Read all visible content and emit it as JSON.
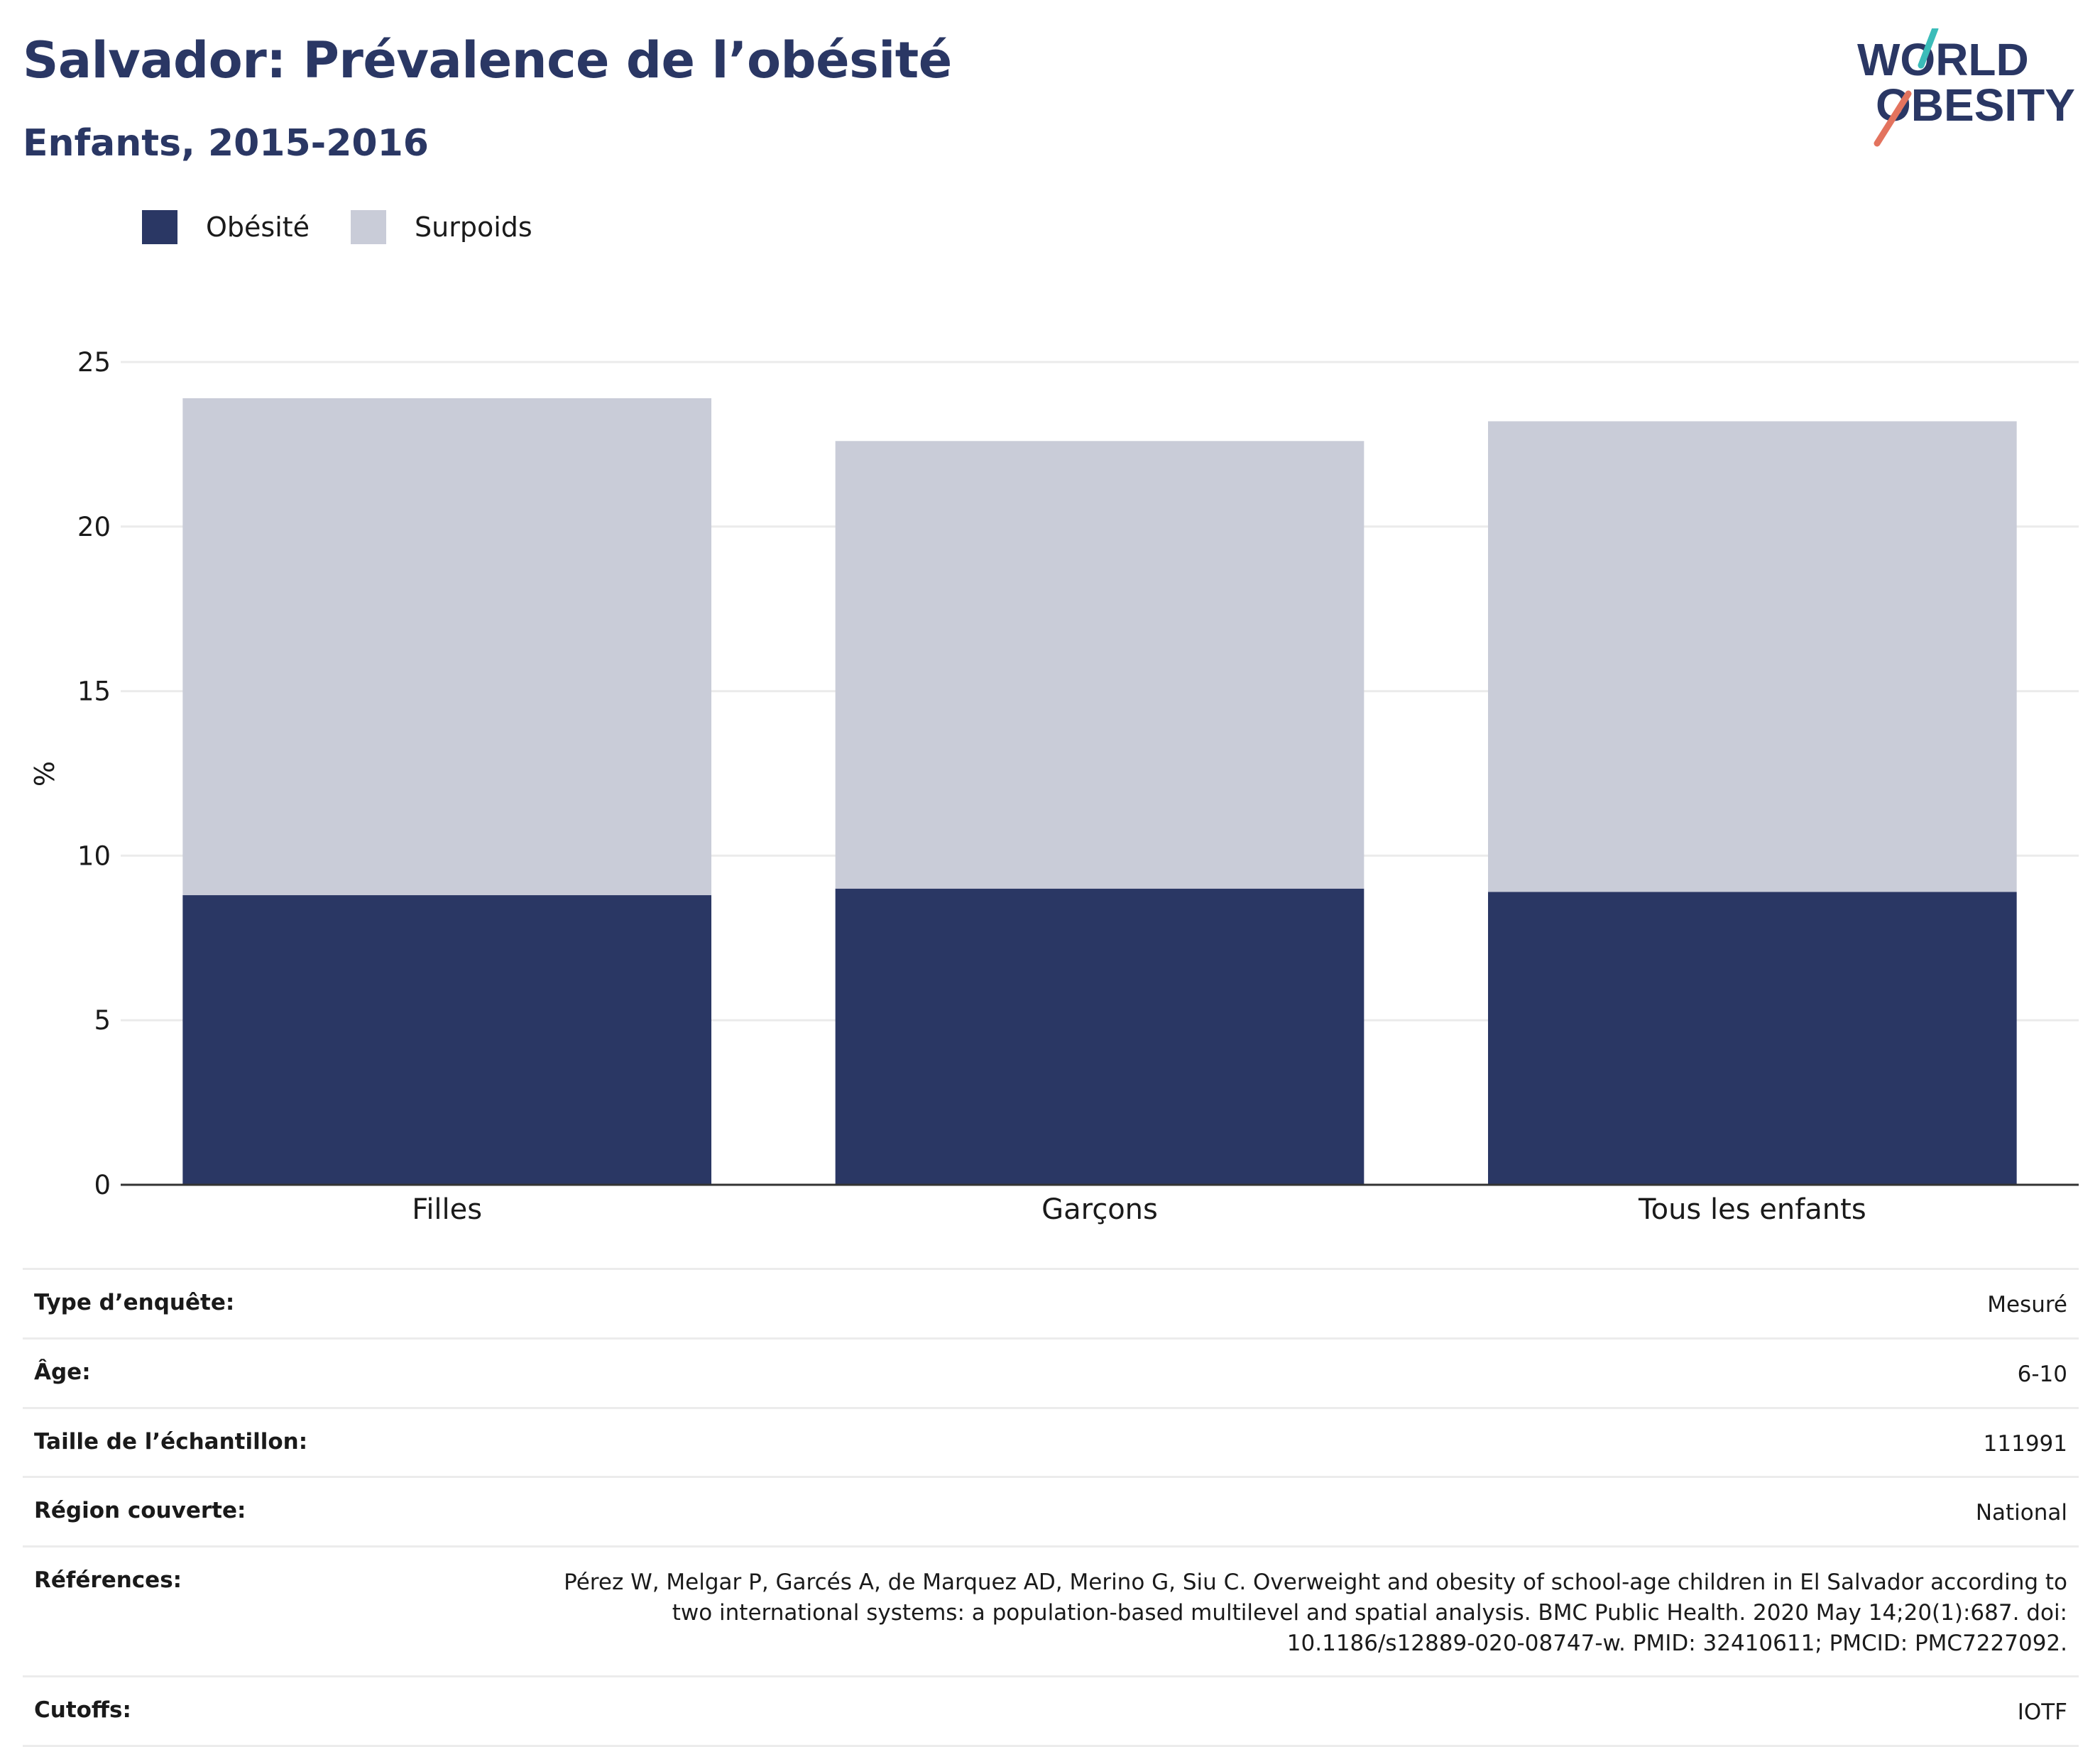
{
  "title": "Salvador: Prévalence de l’obésité",
  "subtitle": "Enfants, 2015-2016",
  "logo": {
    "line1": "WORLD",
    "line2": "OBESITY"
  },
  "colors": {
    "obesity": "#2a3764",
    "overweight": "#c9ccd8",
    "text": "#1a1a1a",
    "title": "#2a3764",
    "grid": "#ebebeb"
  },
  "chart_data": {
    "type": "bar",
    "stacked": true,
    "categories": [
      "Filles",
      "Garçons",
      "Tous les enfants"
    ],
    "series": [
      {
        "name": "Obésité",
        "values": [
          8.8,
          9.0,
          8.9
        ]
      },
      {
        "name": "Surpoids",
        "values": [
          15.1,
          13.6,
          14.3
        ]
      }
    ],
    "ylabel": "%",
    "xlabel": "",
    "ylim": [
      0,
      25
    ],
    "yticks": [
      "0",
      "5",
      "10",
      "15",
      "20",
      "25"
    ],
    "grid": true,
    "legend_position": "top-left"
  },
  "info": [
    {
      "label": "Type d’enquête:",
      "value": "Mesuré"
    },
    {
      "label": "Âge:",
      "value": "6-10"
    },
    {
      "label": "Taille de l’échantillon:",
      "value": "111991"
    },
    {
      "label": "Région couverte:",
      "value": "National"
    },
    {
      "label": "Références:",
      "value": "Pérez W, Melgar P, Garcés A, de Marquez AD, Merino G, Siu C. Overweight and obesity of school-age children in El Salvador according to two international systems: a population-based multilevel and spatial analysis. BMC Public Health. 2020 May 14;20(1):687. doi: 10.1186/s12889-020-08747-w. PMID: 32410611; PMCID: PMC7227092."
    },
    {
      "label": "Cutoffs:",
      "value": "IOTF"
    }
  ]
}
